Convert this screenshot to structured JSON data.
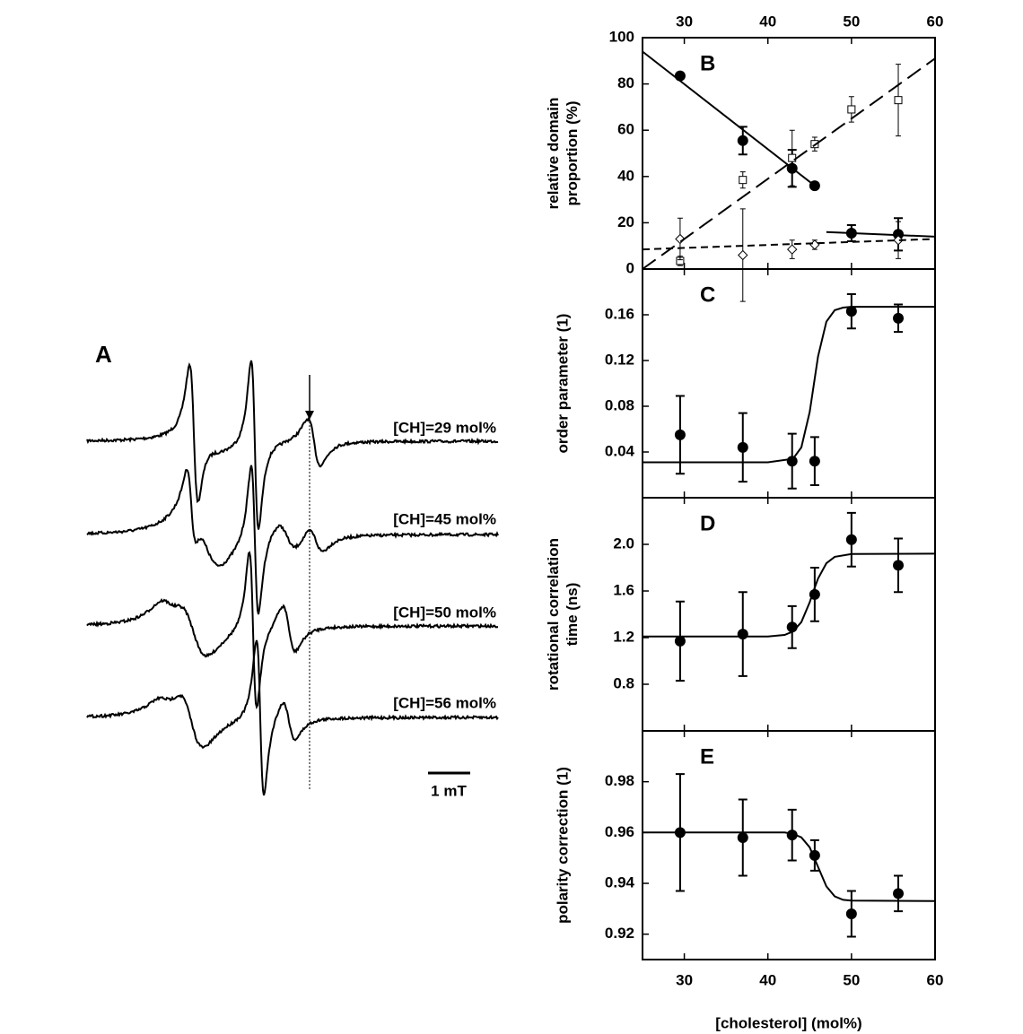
{
  "chart_data": [
    {
      "type": "spectra",
      "label": "A",
      "trace_labels": [
        "[CH]=29 mol%",
        "[CH]=45 mol%",
        "[CH]=50 mol%",
        "[CH]=56 mol%"
      ],
      "scale_label": "1 mT"
    },
    {
      "type": "scatter",
      "label": "B",
      "ylabel": [
        "relative domain",
        "proportion (%)"
      ],
      "xlim": [
        25,
        60
      ],
      "xticks": [
        30,
        40,
        50,
        60
      ],
      "xtick_labels": "top",
      "ylim": [
        0,
        100
      ],
      "yticks": [
        0,
        20,
        40,
        60,
        80,
        100
      ],
      "series": [
        {
          "marker": "circle-filled",
          "x": [
            29.5,
            37,
            42.9,
            45.6
          ],
          "values": [
            83.5,
            55.5,
            43.5,
            36
          ],
          "errors": [
            1,
            6,
            8,
            1
          ]
        },
        {
          "marker": "circle-filled",
          "x": [
            50,
            55.6
          ],
          "values": [
            15.5,
            15
          ],
          "errors": [
            3.5,
            7
          ]
        },
        {
          "marker": "square-open",
          "x": [
            29.5,
            37,
            42.9,
            45.6,
            50,
            55.6
          ],
          "values": [
            3.5,
            38.5,
            48,
            54,
            69,
            73
          ],
          "errors": [
            2,
            3.5,
            12,
            3,
            5.5,
            15.5
          ]
        },
        {
          "marker": "diamond-open",
          "x": [
            29.5,
            37,
            42.9,
            45.6,
            50,
            55.6
          ],
          "values": [
            13,
            6,
            8.5,
            10.5,
            null,
            12.5
          ],
          "errors": [
            9,
            20,
            4,
            2,
            null,
            8
          ]
        },
        {
          "line": "solid",
          "x": [
            25,
            45.6
          ],
          "values": [
            94,
            36
          ]
        },
        {
          "line": "solid",
          "x": [
            47,
            60
          ],
          "values": [
            16,
            14
          ]
        },
        {
          "line": "long-dash",
          "x": [
            25,
            60
          ],
          "values": [
            0,
            91
          ]
        },
        {
          "line": "short-dash",
          "x": [
            25,
            60
          ],
          "values": [
            8.5,
            13
          ]
        }
      ]
    },
    {
      "type": "scatter",
      "label": "C",
      "ylabel": [
        "order parameter (1)"
      ],
      "xlim": [
        25,
        60
      ],
      "xticks": [
        30,
        40,
        50,
        60
      ],
      "xtick_labels": "none",
      "ylim": [
        0,
        0.2
      ],
      "yticks": [
        0.04,
        0.08,
        0.12,
        0.16
      ],
      "series": [
        {
          "marker": "circle-filled",
          "x": [
            29.5,
            37,
            42.9,
            45.6,
            50,
            55.6
          ],
          "values": [
            0.055,
            0.044,
            0.032,
            0.032,
            0.163,
            0.157
          ],
          "errors": [
            0.034,
            0.03,
            0.024,
            0.021,
            0.015,
            0.012
          ]
        },
        {
          "line": "solid",
          "x": [
            25,
            40,
            43,
            44,
            45,
            45.5,
            46,
            47,
            48,
            49,
            50,
            60
          ],
          "values": [
            0.031,
            0.031,
            0.034,
            0.044,
            0.075,
            0.099,
            0.1235,
            0.154,
            0.164,
            0.1663,
            0.167,
            0.167
          ]
        }
      ]
    },
    {
      "type": "scatter",
      "label": "D",
      "ylabel": [
        "rotational correlation",
        "time (ns)"
      ],
      "xlim": [
        25,
        60
      ],
      "xticks": [
        30,
        40,
        50,
        60
      ],
      "xtick_labels": "none",
      "ylim": [
        0.4,
        2.4
      ],
      "yticks": [
        0.8,
        1.2,
        1.6,
        {
          "value": 2,
          "label": "2.0"
        }
      ],
      "series": [
        {
          "marker": "circle-filled",
          "x": [
            29.5,
            37,
            42.9,
            45.6,
            50,
            55.6
          ],
          "values": [
            1.17,
            1.23,
            1.29,
            1.57,
            2.04,
            1.82
          ],
          "errors": [
            0.34,
            0.36,
            0.18,
            0.23,
            0.23,
            0.23
          ]
        },
        {
          "line": "solid",
          "x": [
            25,
            40,
            42,
            43,
            44,
            45,
            45.5,
            46,
            47,
            48,
            50,
            60
          ],
          "values": [
            1.21,
            1.21,
            1.223,
            1.252,
            1.333,
            1.503,
            1.607,
            1.707,
            1.838,
            1.893,
            1.917,
            1.92
          ]
        }
      ]
    },
    {
      "type": "scatter",
      "label": "E",
      "ylabel": [
        "polarity correction (1)"
      ],
      "xlabel": "[cholesterol] (mol%)",
      "xlim": [
        25,
        60
      ],
      "xticks": [
        30,
        40,
        50,
        60
      ],
      "xtick_labels": "bottom",
      "ylim": [
        0.91,
        1.0
      ],
      "yticks": [
        0.92,
        0.94,
        0.96,
        0.98
      ],
      "series": [
        {
          "marker": "circle-filled",
          "x": [
            29.5,
            37,
            42.9,
            45.6,
            50,
            55.6
          ],
          "values": [
            0.96,
            0.958,
            0.959,
            0.951,
            0.928,
            0.936
          ],
          "errors": [
            0.023,
            0.015,
            0.01,
            0.006,
            0.009,
            0.007
          ]
        },
        {
          "line": "solid",
          "x": [
            25,
            42,
            43,
            44,
            45,
            46,
            47,
            48,
            49,
            50,
            60
          ],
          "values": [
            0.96,
            0.96,
            0.9595,
            0.9581,
            0.9542,
            0.9465,
            0.9388,
            0.9349,
            0.9335,
            0.9332,
            0.933
          ]
        }
      ]
    }
  ]
}
